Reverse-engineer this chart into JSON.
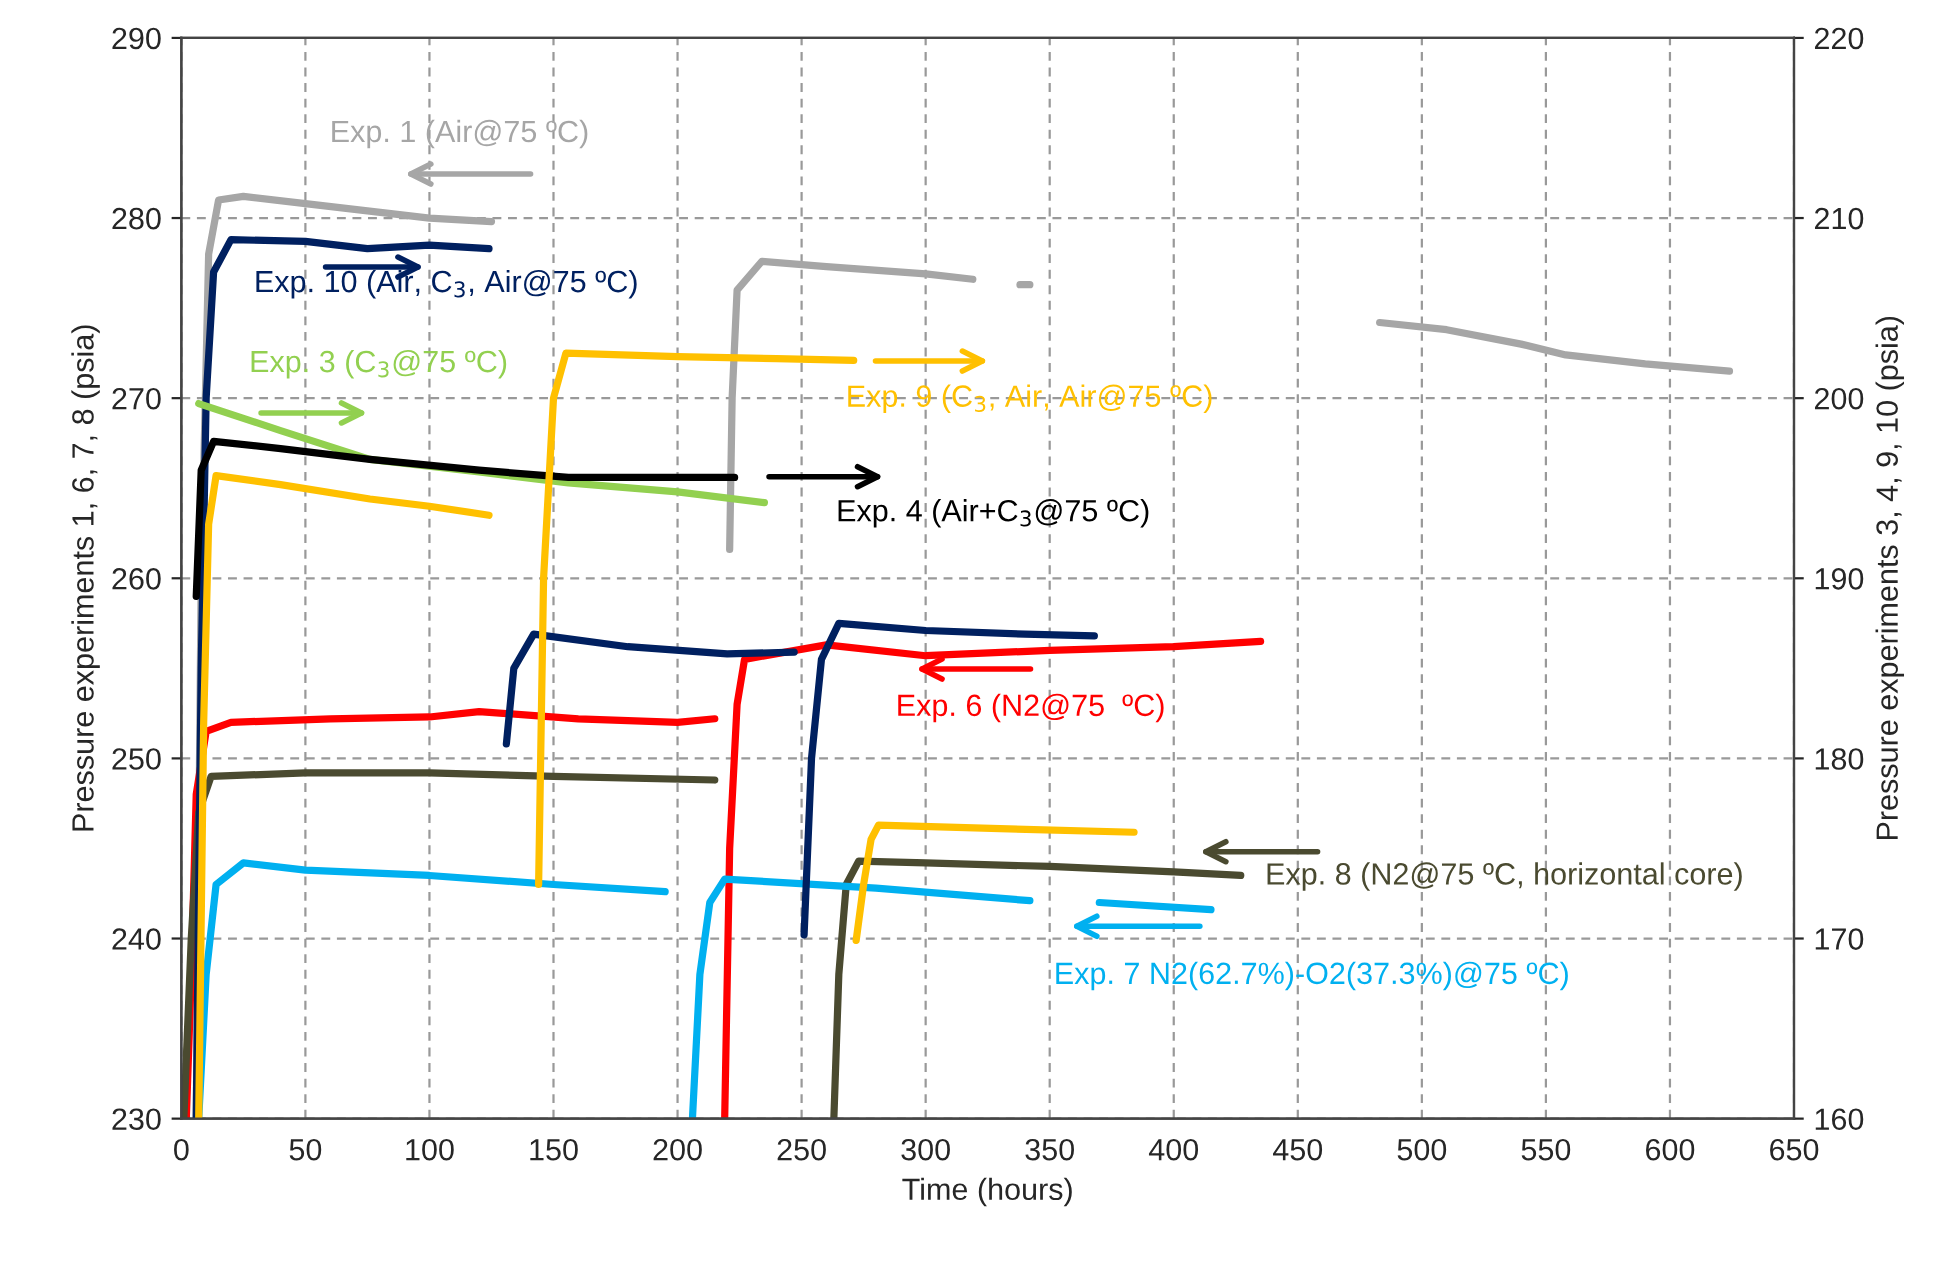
{
  "chart_data": {
    "type": "line",
    "xlabel": "Time (hours)",
    "ylabel": "Pressure experiments 1, 6, 7, 8 (psia)",
    "y2label": "Pressure experiments 3, 4, 9, 10 (psia)",
    "xlim": [
      0,
      650
    ],
    "xticks": [
      0,
      50,
      100,
      150,
      200,
      250,
      300,
      350,
      400,
      450,
      500,
      550,
      600,
      650
    ],
    "ylim": [
      230,
      290
    ],
    "yticks": [
      230,
      240,
      250,
      260,
      270,
      280,
      290
    ],
    "y2lim": [
      160,
      220
    ],
    "y2ticks": [
      160,
      170,
      180,
      190,
      200,
      210,
      220
    ],
    "grid": true,
    "legend": false,
    "marker": "none",
    "line_style": "solid",
    "series": [
      {
        "color": "#a6a6a6",
        "x": [
          6,
          8,
          11,
          15,
          25,
          50,
          75,
          100,
          125,
          170,
          221,
          222,
          224,
          234,
          260,
          300,
          319,
          330,
          338,
          342,
          400,
          483,
          510,
          540,
          558,
          590,
          624
        ],
        "values": [
          230,
          260,
          278,
          281,
          281.2,
          280.8,
          280.4,
          280,
          279.8,
          null,
          261.6,
          270,
          276,
          277.6,
          277.3,
          276.9,
          276.6,
          null,
          276.3,
          276.3,
          null,
          274.2,
          273.8,
          273,
          272.4,
          271.9,
          271.5
        ]
      },
      {
        "color": "#002060",
        "axis": "y2",
        "x": [
          6,
          8,
          10,
          13,
          20,
          50,
          75,
          100,
          124,
          128,
          131,
          134,
          142,
          180,
          220,
          247,
          249,
          251,
          254,
          258,
          265,
          300,
          340,
          368
        ],
        "values": [
          160,
          185,
          200,
          207,
          208.8,
          208.7,
          208.3,
          208.5,
          208.3,
          null,
          180.8,
          185,
          186.9,
          186.2,
          185.8,
          185.9,
          null,
          170.2,
          180,
          185.5,
          187.5,
          187.1,
          186.9,
          186.8
        ]
      },
      {
        "color": "#92d050",
        "axis": "y2",
        "x": [
          7,
          40,
          76,
          120,
          156,
          200,
          235
        ],
        "values": [
          199.7,
          198.2,
          196.6,
          195.9,
          195.3,
          194.8,
          194.2
        ]
      },
      {
        "color": "#000000",
        "axis": "y2",
        "x": [
          6,
          8,
          13,
          40,
          76,
          120,
          156,
          190,
          223
        ],
        "values": [
          189,
          196,
          197.6,
          197.2,
          196.6,
          196,
          195.6,
          195.6,
          195.6
        ]
      },
      {
        "color": "#ffc000",
        "axis": "y2",
        "x": [
          7,
          9,
          11,
          14,
          40,
          76,
          100,
          124,
          134,
          144,
          146,
          150,
          155,
          200,
          240,
          271,
          271.5,
          272,
          275,
          278,
          281,
          330,
          384
        ],
        "values": [
          160,
          182,
          193,
          195.7,
          195.2,
          194.4,
          194,
          193.5,
          null,
          173,
          190,
          200,
          202.5,
          202.3,
          202.2,
          202.1,
          null,
          169.9,
          173,
          175.5,
          176.3,
          176.1,
          175.9
        ]
      },
      {
        "color": "#ff0000",
        "x": [
          2,
          4,
          6,
          10,
          20,
          60,
          100,
          120,
          160,
          200,
          215,
          217,
          219,
          221,
          224,
          227,
          260,
          300,
          350,
          400,
          435
        ],
        "values": [
          230,
          238,
          248,
          251.5,
          252,
          252.2,
          252.3,
          252.6,
          252.2,
          252,
          252.2,
          null,
          230,
          245,
          253,
          255.5,
          256.3,
          255.7,
          256,
          256.2,
          256.5
        ]
      },
      {
        "color": "#4a4a30",
        "x": [
          1,
          4,
          7,
          12,
          50,
          100,
          150,
          215,
          240,
          263,
          265,
          268,
          273,
          300,
          350,
          400,
          427
        ],
        "values": [
          230,
          240,
          247,
          249,
          249.2,
          249.2,
          249,
          248.8,
          null,
          230,
          238,
          243,
          244.3,
          244.2,
          244,
          243.7,
          243.5
        ]
      },
      {
        "color": "#00b0f0",
        "x": [
          7,
          10,
          14,
          25,
          50,
          100,
          150,
          195,
          200,
          206,
          209,
          213,
          219,
          280,
          342,
          356,
          370,
          415
        ],
        "values": [
          230,
          238,
          243,
          244.2,
          243.8,
          243.5,
          243,
          242.6,
          null,
          230,
          238,
          242,
          243.3,
          242.8,
          242.1,
          null,
          242,
          241.6
        ]
      }
    ],
    "annotations": [
      "Exp. 1 (Air@75 ºC)",
      "Exp. 10 (Air, C$_{3}$, Air@75 ºC)",
      "Exp. 3 (C$_{3}$@75 ºC)",
      "Exp. 4 (Air+C$_{3}$@75 ºC)",
      "Exp. 9 (C$_{3}$, Air, Air@75 ºC)",
      "Exp. 6 (N2@75  ºC)",
      "Exp. 8 (N2@75 ºC, horizontal core)",
      "Exp. 7 N2(62.7%)-O2(37.3%)@75 ºC)"
    ]
  }
}
